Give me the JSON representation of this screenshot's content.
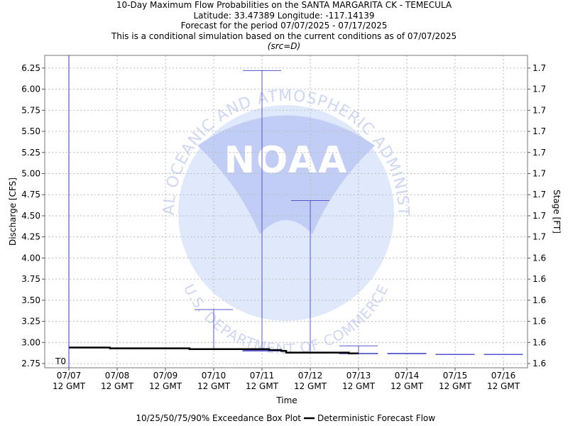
{
  "titles": {
    "line1": "10-Day Maximum Flow Probabilities on the SANTA MARGARITA CK - TEMECULA",
    "line2": "Latitude: 33.47389 Longitude: -117.14139",
    "line3": "Forecast for the period 07/07/2025 - 07/17/2025",
    "line4": "This is a conditional simulation based on the current conditions as of 07/07/2025",
    "src": "(src=D)"
  },
  "watermark": {
    "logo_text": "NOAA",
    "ring_text": "NATIONAL OCEANIC AND ATMOSPHERIC ADMINISTRATION",
    "ring_text_bottom": "U.S. DEPARTMENT OF COMMERCE"
  },
  "chart_data": {
    "type": "box+line",
    "xlabel": "Time",
    "ylabel": "Discharge [CFS]",
    "y2label": "Stage [FT]",
    "ylim": [
      2.7,
      6.4
    ],
    "y_ticks": [
      2.75,
      3.0,
      3.25,
      3.5,
      3.75,
      4.0,
      4.25,
      4.5,
      4.75,
      5.0,
      5.25,
      5.5,
      5.75,
      6.0,
      6.25
    ],
    "y_tick_labels": [
      "2.75",
      "3.00",
      "3.25",
      "3.50",
      "3.75",
      "4.00",
      "4.25",
      "4.50",
      "4.75",
      "5.00",
      "5.25",
      "5.50",
      "5.75",
      "6.00",
      "6.25"
    ],
    "y2_tick_labels": [
      "1.6",
      "1.6",
      "1.6",
      "1.6",
      "1.6",
      "1.6",
      "1.7",
      "1.7",
      "1.7",
      "1.7",
      "1.7",
      "1.7",
      "1.7",
      "1.7",
      "1.7"
    ],
    "x_range_days": [
      7.0,
      17.0
    ],
    "x_ticks": [
      {
        "day": 7.5,
        "l1": "07/07",
        "l2": "12 GMT"
      },
      {
        "day": 8.5,
        "l1": "07/08",
        "l2": "12 GMT"
      },
      {
        "day": 9.5,
        "l1": "07/09",
        "l2": "12 GMT"
      },
      {
        "day": 10.5,
        "l1": "07/10",
        "l2": "12 GMT"
      },
      {
        "day": 11.5,
        "l1": "07/11",
        "l2": "12 GMT"
      },
      {
        "day": 12.5,
        "l1": "07/12",
        "l2": "12 GMT"
      },
      {
        "day": 13.5,
        "l1": "07/13",
        "l2": "12 GMT"
      },
      {
        "day": 14.5,
        "l1": "07/14",
        "l2": "12 GMT"
      },
      {
        "day": 15.5,
        "l1": "07/15",
        "l2": "12 GMT"
      },
      {
        "day": 16.5,
        "l1": "07/16",
        "l2": "12 GMT"
      }
    ],
    "t0": {
      "day": 7.5,
      "label": "T0"
    },
    "boxes": [
      {
        "day": 10.5,
        "p10": 2.92,
        "p25": 2.92,
        "p50": 2.92,
        "p75": 2.92,
        "p90": 3.39
      },
      {
        "day": 11.5,
        "p10": 2.9,
        "p25": 2.9,
        "p50": 2.9,
        "p75": 2.91,
        "p90": 6.22
      },
      {
        "day": 12.5,
        "p10": 2.88,
        "p25": 2.88,
        "p50": 2.88,
        "p75": 2.88,
        "p90": 4.68
      },
      {
        "day": 13.5,
        "p10": 2.87,
        "p25": 2.87,
        "p50": 2.87,
        "p75": 2.87,
        "p90": 2.96
      },
      {
        "day": 14.5,
        "p10": 2.87,
        "p25": 2.87,
        "p50": 2.87,
        "p75": 2.87,
        "p90": 2.87
      },
      {
        "day": 15.5,
        "p10": 2.86,
        "p25": 2.86,
        "p50": 2.86,
        "p75": 2.86,
        "p90": 2.86
      },
      {
        "day": 16.5,
        "p10": 2.86,
        "p25": 2.86,
        "p50": 2.86,
        "p75": 2.86,
        "p90": 2.86
      }
    ],
    "deterministic": {
      "name": "Deterministic Forecast Flow",
      "points": [
        [
          7.5,
          2.94
        ],
        [
          8.35,
          2.94
        ],
        [
          8.35,
          2.93
        ],
        [
          10.0,
          2.93
        ],
        [
          10.0,
          2.92
        ],
        [
          11.65,
          2.92
        ],
        [
          11.65,
          2.91
        ],
        [
          11.9,
          2.91
        ],
        [
          11.9,
          2.9
        ],
        [
          12.0,
          2.9
        ],
        [
          12.0,
          2.88
        ],
        [
          13.3,
          2.88
        ],
        [
          13.3,
          2.87
        ],
        [
          13.5,
          2.87
        ]
      ]
    },
    "legend": {
      "box_label": "10/25/50/75/90% Exceedance Box Plot",
      "line_label": "Deterministic Forecast Flow",
      "placement": "bottom"
    },
    "colors": {
      "box": "#5555cc",
      "line": "#000000",
      "grid": "#bbbbbb",
      "t0": "#3333cc"
    }
  }
}
